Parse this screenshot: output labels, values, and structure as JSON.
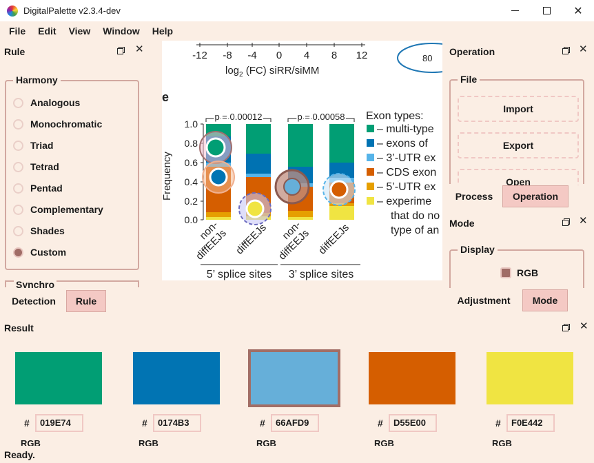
{
  "window": {
    "title": "DigitalPalette v2.3.4-dev"
  },
  "menu": [
    "File",
    "Edit",
    "View",
    "Window",
    "Help"
  ],
  "rule_panel": {
    "title": "Rule",
    "harmony_title": "Harmony",
    "options": [
      "Analogous",
      "Monochromatic",
      "Triad",
      "Tetrad",
      "Pentad",
      "Complementary",
      "Shades",
      "Custom"
    ],
    "selected": "Custom",
    "synchro_title": "Synchro",
    "tabs": [
      "Detection",
      "Rule"
    ],
    "active_tab": "Rule"
  },
  "operation_panel": {
    "title": "Operation",
    "file_title": "File",
    "buttons": [
      "Import",
      "Export",
      "Open"
    ],
    "tabs": [
      "Process",
      "Operation"
    ],
    "active_tab": "Operation"
  },
  "mode_panel": {
    "title": "Mode",
    "display_title": "Display",
    "display_option": "RGB",
    "tabs": [
      "Adjustment",
      "Mode"
    ],
    "active_tab": "Mode"
  },
  "figure": {
    "top_axis_ticks": [
      "-12",
      "-8",
      "-4",
      "0",
      "4",
      "8",
      "12"
    ],
    "top_axis_label": "log",
    "top_axis_label_sub": "2",
    "top_axis_label_rest": " (FC) siRR/siMM",
    "ellipse_value": "80",
    "panel_letter": "e",
    "ylabel": "Frequency",
    "yticks": [
      "1.0",
      "0.8",
      "0.6",
      "0.4",
      "0.2",
      "0.0"
    ],
    "pvalue_left": "p = 0.00012",
    "pvalue_right": "p = 0.00058",
    "bar_labels": [
      [
        "non-",
        "diffEEJs"
      ],
      [
        "diffEEJs"
      ],
      [
        "non-",
        "diffEEJs"
      ],
      [
        "diffEEJs"
      ]
    ],
    "group_labels": [
      "5’ splice sites",
      "3’ splice sites"
    ],
    "legend_title": "Exon types:",
    "legend_items": [
      "– multi-type",
      "– exons of",
      "– 3’-UTR ex",
      "– CDS exon",
      "– 5’-UTR ex",
      "– experime"
    ],
    "legend_extra": [
      "that do no",
      "type of an"
    ],
    "colors": [
      "#019E74",
      "#0072B2",
      "#56B4E9",
      "#D55E00",
      "#E69F00",
      "#F0E442"
    ]
  },
  "result": {
    "title": "Result",
    "hash_symbol": "#",
    "swatches": [
      {
        "hex": "019E74",
        "color": "#019E74"
      },
      {
        "hex": "0174B3",
        "color": "#0174B3"
      },
      {
        "hex": "66AFD9",
        "color": "#66AFD9"
      },
      {
        "hex": "D55E00",
        "color": "#D55E00"
      },
      {
        "hex": "F0E442",
        "color": "#F0E442"
      }
    ],
    "selected_index": 2,
    "rgb_label": "RGB"
  },
  "status": "Ready."
}
